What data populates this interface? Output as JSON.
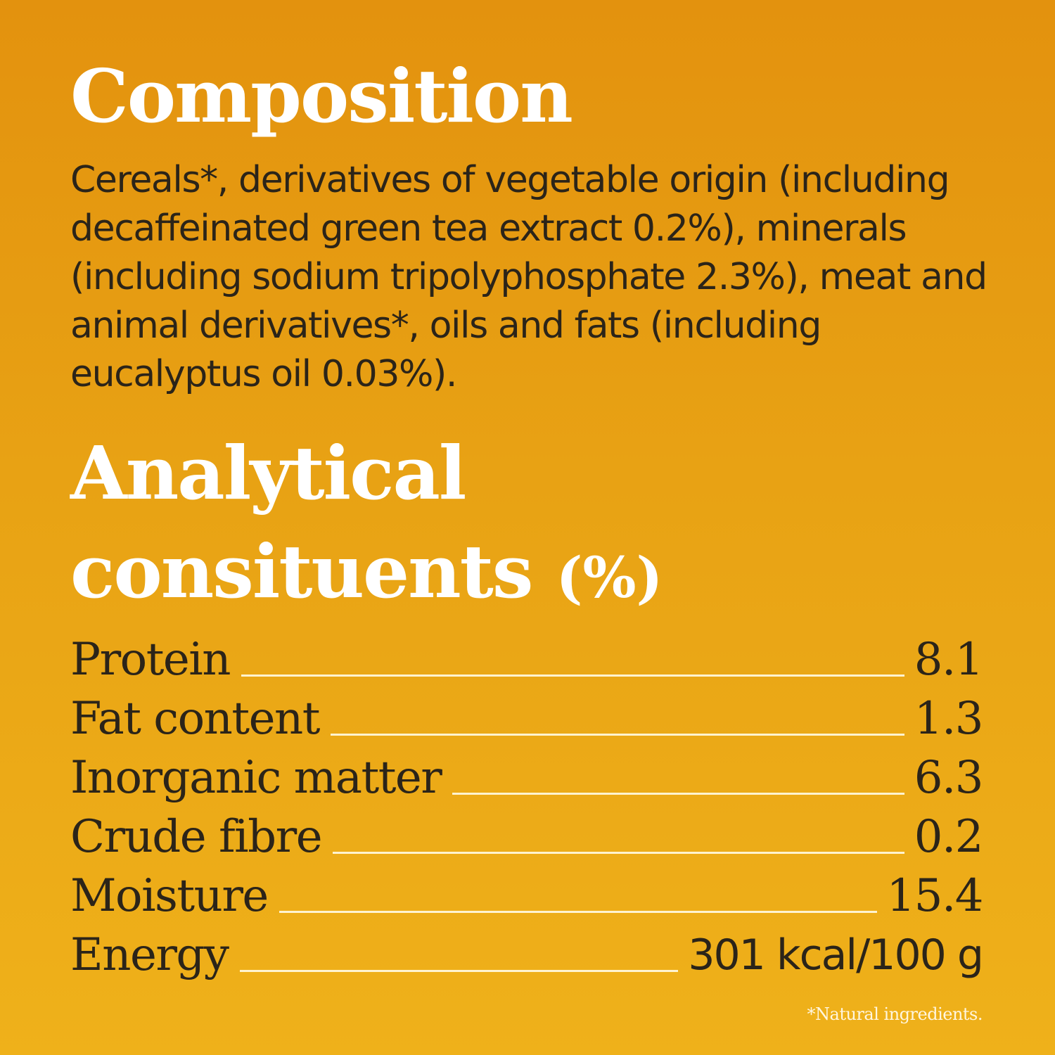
{
  "composition": {
    "heading": "Composition",
    "text": "Cereals*, derivatives of vegetable origin (including decaffeinated green tea extract 0.2%), minerals (including sodium tripolyphosphate 2.3%), meat and animal derivatives*, oils and fats (including eucalyptus oil 0.03%)."
  },
  "analytical": {
    "heading_line1": "Analytical",
    "heading_line2": "consituents",
    "heading_suffix": "(%)",
    "rows": [
      {
        "label": "Protein",
        "value": "8.1"
      },
      {
        "label": "Fat content",
        "value": "1.3"
      },
      {
        "label": "Inorganic matter",
        "value": "6.3"
      },
      {
        "label": "Crude fibre",
        "value": "0.2"
      },
      {
        "label": "Moisture",
        "value": "15.4"
      },
      {
        "label": "Energy",
        "value": "301 kcal/100 g"
      }
    ]
  },
  "footnote": "*Natural ingredients.",
  "colors": {
    "background_top": "#e3920e",
    "background_bottom": "#efb11a",
    "heading": "#ffffff",
    "body_text": "#2b2419"
  }
}
